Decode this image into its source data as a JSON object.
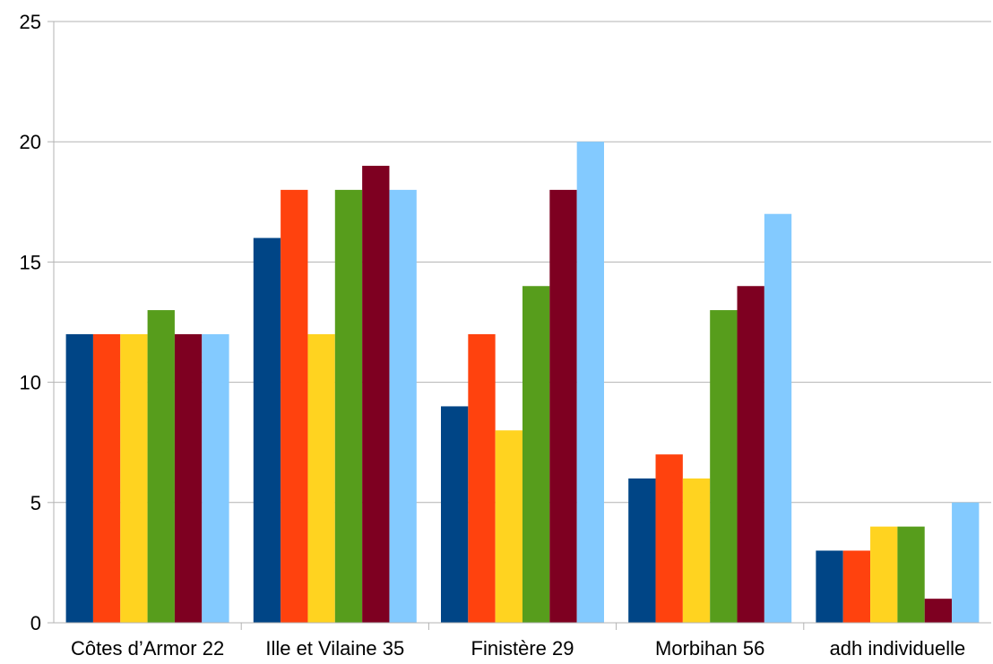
{
  "chart_data": {
    "type": "bar",
    "title": "",
    "xlabel": "",
    "ylabel": "",
    "ylim": [
      0,
      25
    ],
    "yticks": [
      0,
      5,
      10,
      15,
      20,
      25
    ],
    "grid": "horizontal",
    "legend": "none",
    "categories": [
      "Côtes d’Armor 22",
      "Ille et Vilaine 35",
      "Finistère 29",
      "Morbihan 56",
      "adh individuelle"
    ],
    "series": [
      {
        "color": "#004586",
        "values": [
          12,
          16,
          9,
          6,
          3
        ]
      },
      {
        "color": "#ff420e",
        "values": [
          12,
          18,
          12,
          7,
          3
        ]
      },
      {
        "color": "#ffd320",
        "values": [
          12,
          12,
          8,
          6,
          4
        ]
      },
      {
        "color": "#579d1c",
        "values": [
          13,
          18,
          14,
          13,
          4
        ]
      },
      {
        "color": "#7e0021",
        "values": [
          12,
          19,
          18,
          14,
          1
        ]
      },
      {
        "color": "#83caff",
        "values": [
          12,
          18,
          20,
          17,
          5
        ]
      }
    ]
  }
}
